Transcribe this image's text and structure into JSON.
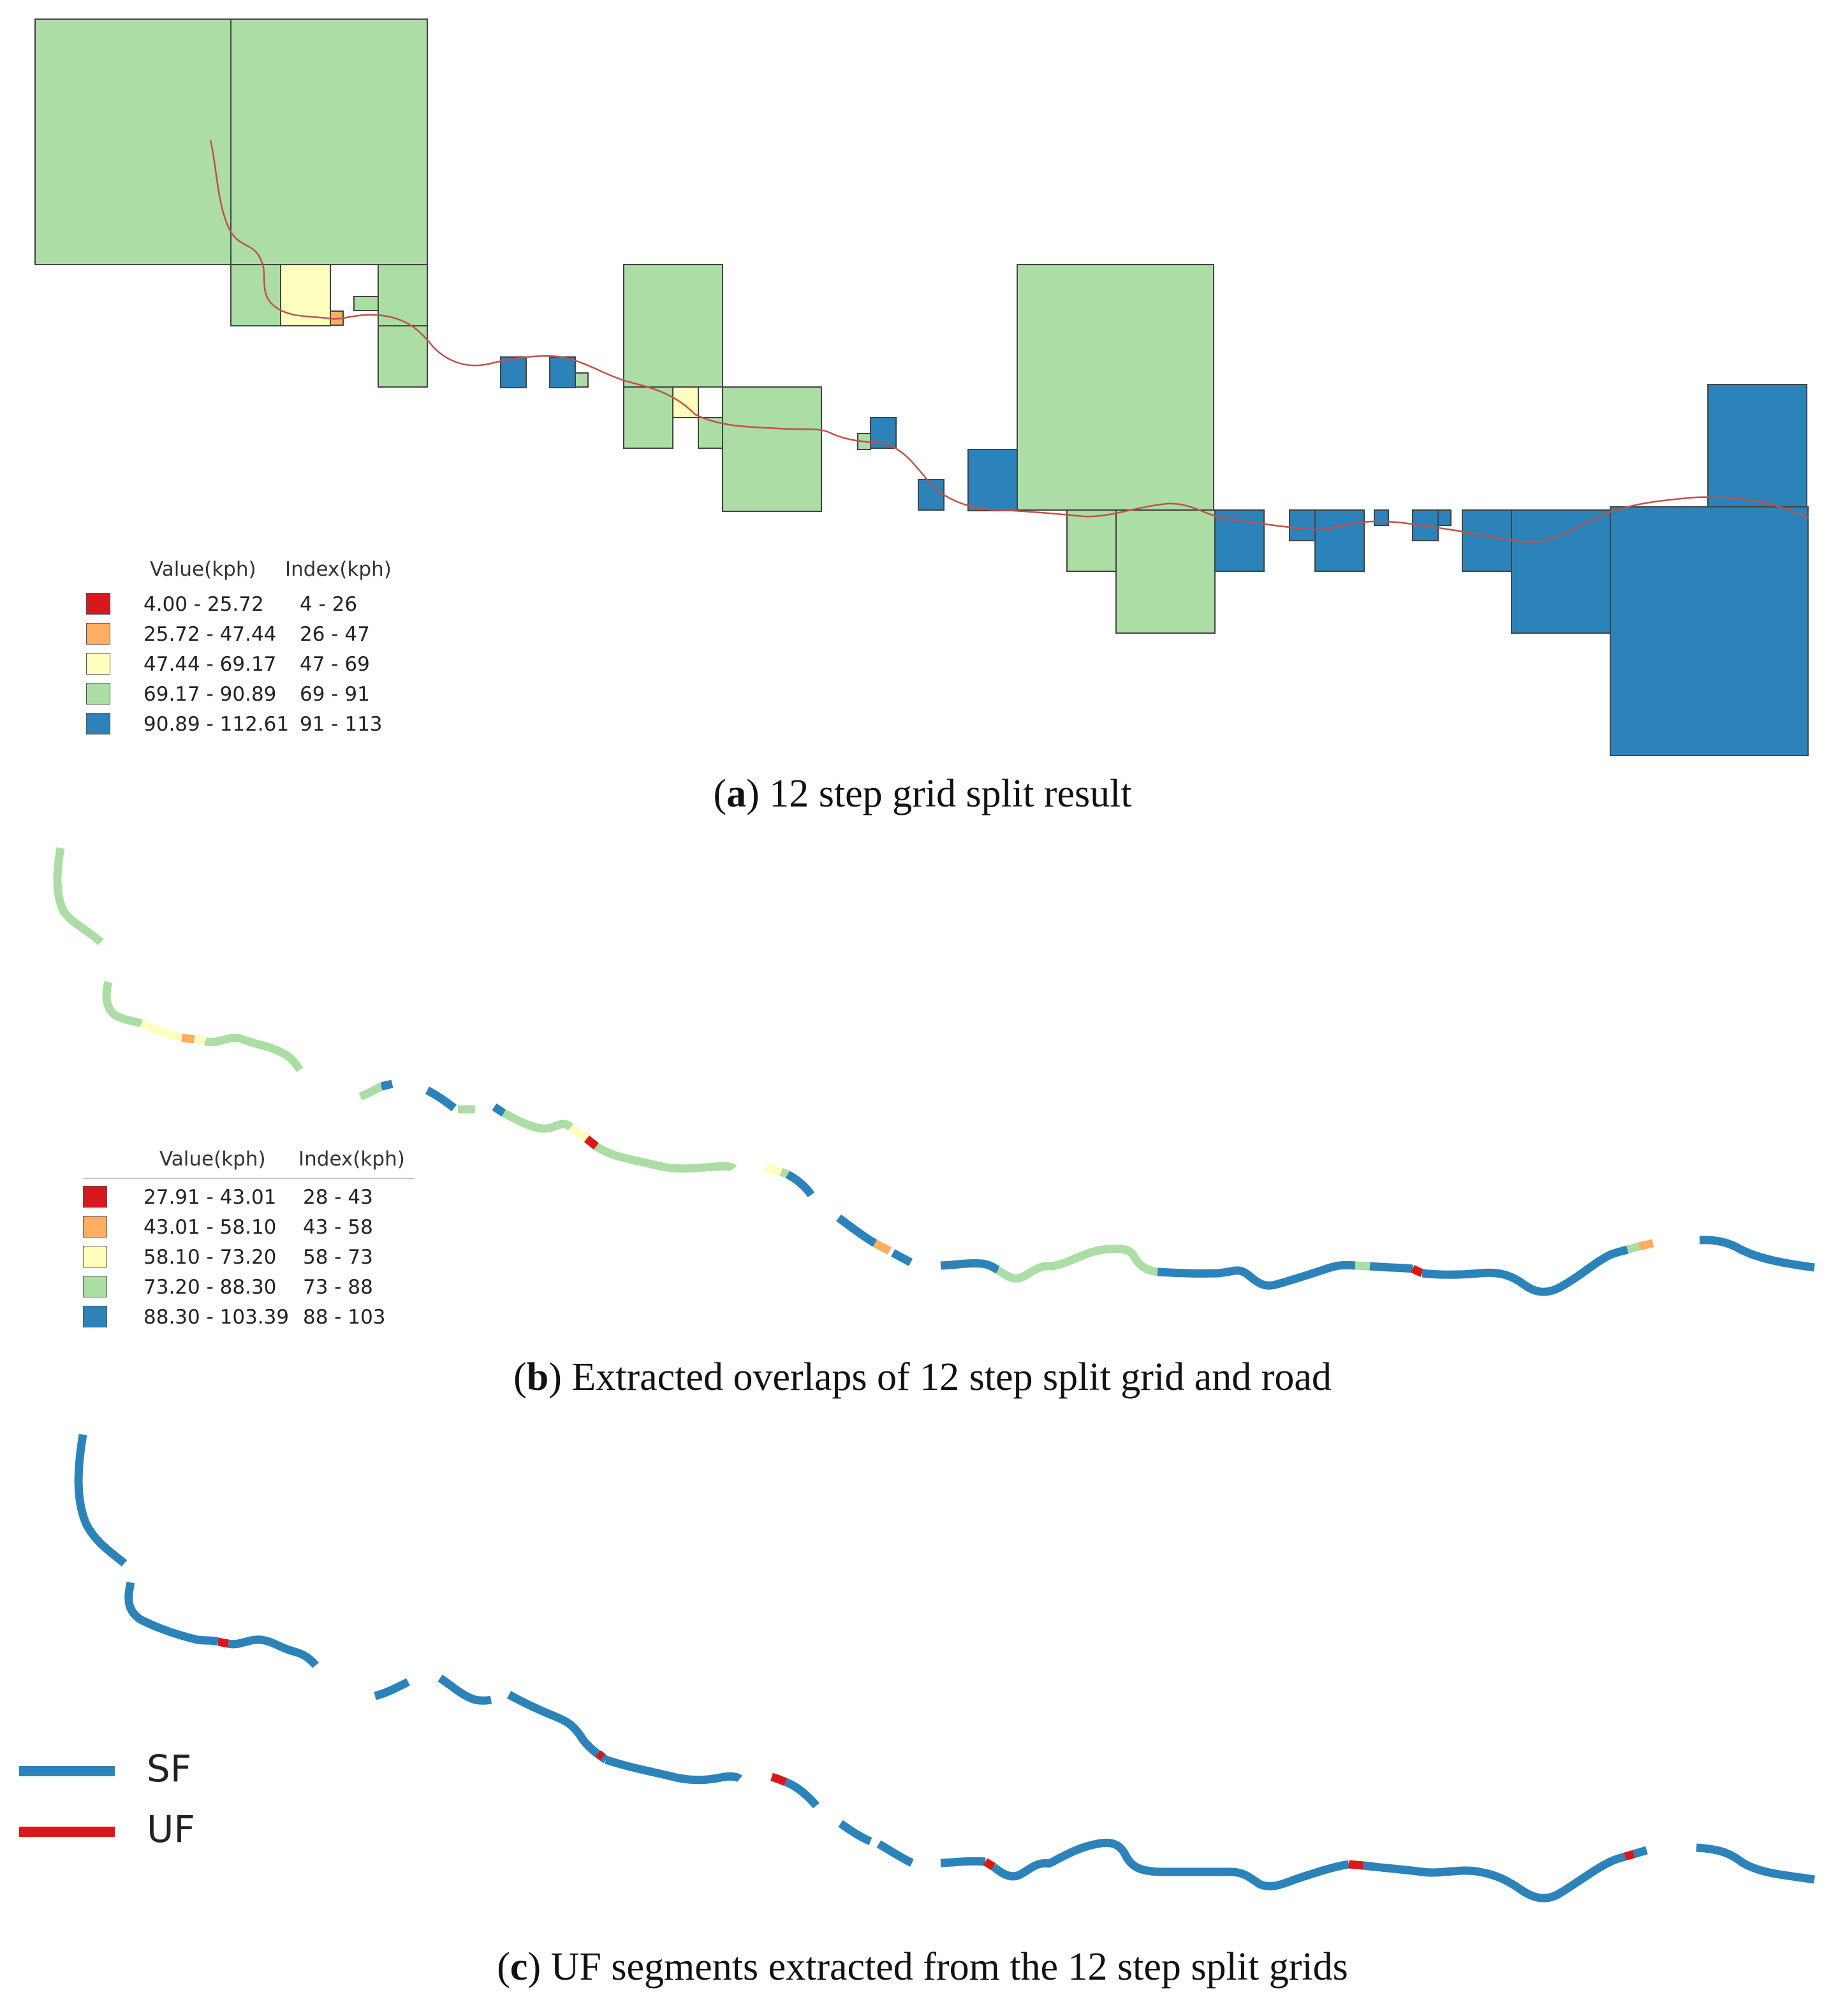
{
  "colors": {
    "red": "#d7191c",
    "orange": "#fdae61",
    "yellow": "#ffffbf",
    "green": "#abdda4",
    "blue": "#2b83ba",
    "road": "#c0504d",
    "sf": "#2b83ba",
    "uf": "#d7191c"
  },
  "panel_a": {
    "legend": {
      "header_value": "Value(kph)",
      "header_index": "Index(kph)",
      "rows": [
        {
          "value": "4.00 - 25.72",
          "index": "4 - 26",
          "color": "red"
        },
        {
          "value": "25.72 - 47.44",
          "index": "26 - 47",
          "color": "orange"
        },
        {
          "value": "47.44 - 69.17",
          "index": "47 - 69",
          "color": "yellow"
        },
        {
          "value": "69.17 - 90.89",
          "index": "69 - 91",
          "color": "green"
        },
        {
          "value": "90.89 - 112.61",
          "index": "91 - 113",
          "color": "blue"
        }
      ]
    },
    "caption_letter": "a",
    "caption_text": " 12 step grid split result"
  },
  "panel_b": {
    "legend": {
      "header_value": "Value(kph)",
      "header_index": "Index(kph)",
      "rows": [
        {
          "value": "27.91 - 43.01",
          "index": "28 - 43",
          "color": "red"
        },
        {
          "value": "43.01 - 58.10",
          "index": "43 - 58",
          "color": "orange"
        },
        {
          "value": "58.10 - 73.20",
          "index": "58 - 73",
          "color": "yellow"
        },
        {
          "value": "73.20 - 88.30",
          "index": "73 - 88",
          "color": "green"
        },
        {
          "value": "88.30 - 103.39",
          "index": "88 - 103",
          "color": "blue"
        }
      ]
    },
    "caption_letter": "b",
    "caption_text": " Extracted overlaps of 12 step split grid and road"
  },
  "panel_c": {
    "legend": [
      {
        "label": "SF",
        "color": "sf"
      },
      {
        "label": "UF",
        "color": "uf"
      }
    ],
    "caption_letter": "c",
    "caption_text": " UF segments extracted from the 12 step split grids"
  }
}
